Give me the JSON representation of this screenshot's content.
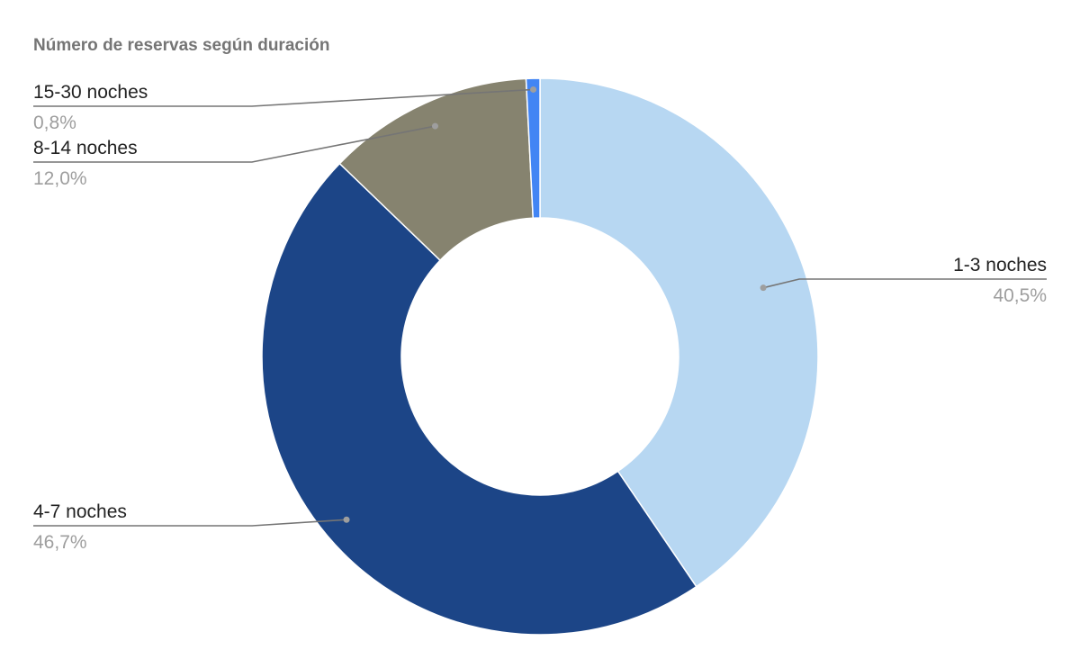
{
  "chart_data": {
    "type": "pie",
    "donut": true,
    "title": "Número de reservas según duración",
    "legend": "none",
    "slices": [
      {
        "label": "1-3 noches",
        "value": 40.5,
        "display": "40,5%",
        "color": "#b7d7f2"
      },
      {
        "label": "4-7 noches",
        "value": 46.7,
        "display": "46,7%",
        "color": "#1c4587"
      },
      {
        "label": "8-14 noches",
        "value": 12.0,
        "display": "12,0%",
        "color": "#86836f"
      },
      {
        "label": "15-30 noches",
        "value": 0.8,
        "display": "0,8%",
        "color": "#4285f4"
      }
    ]
  }
}
